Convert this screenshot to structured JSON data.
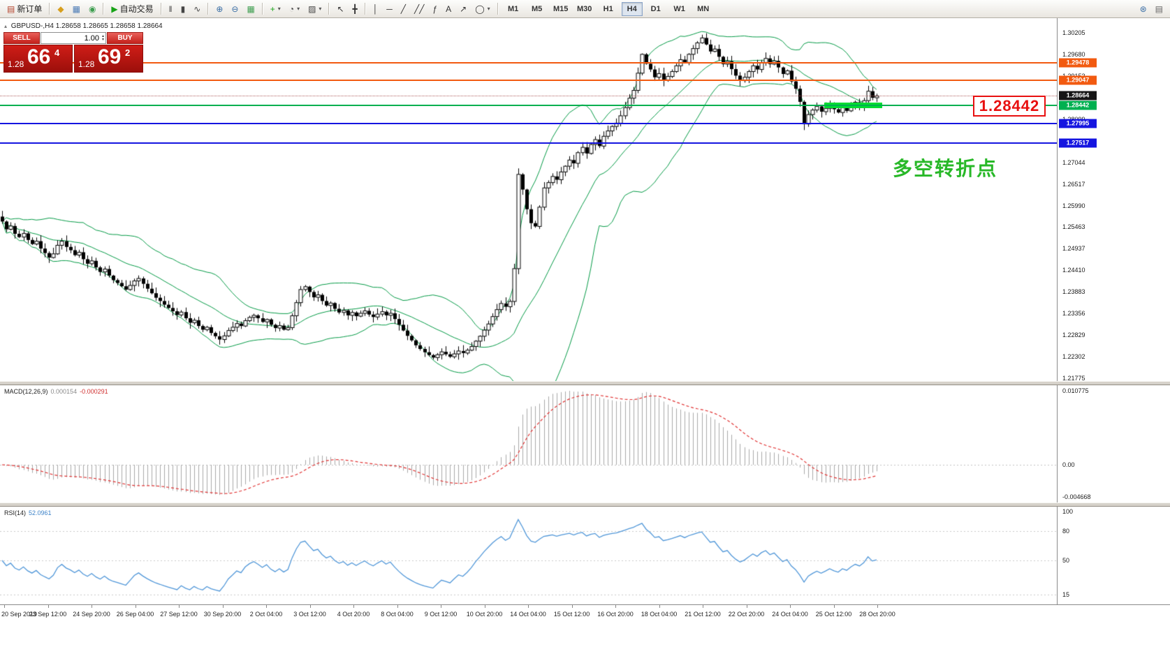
{
  "icons": {
    "collapse": "▴",
    "caret": "▾",
    "caret_up": "▴",
    "caret_down": "▾"
  },
  "toolbar": {
    "groups": [
      [
        {
          "name": "new-order-button",
          "glyph": "▤",
          "glyph_color": "#b3402a",
          "label": "新订单"
        }
      ],
      [
        {
          "name": "market-watch-button",
          "glyph": "◆",
          "glyph_color": "#d79f1e"
        },
        {
          "name": "data-window-button",
          "glyph": "▦",
          "glyph_color": "#4a7ab5"
        },
        {
          "name": "navigator-button",
          "glyph": "◉",
          "glyph_color": "#3d9e4f"
        }
      ],
      [
        {
          "name": "autotrade-button",
          "glyph": "▶",
          "glyph_color": "#17a317",
          "label": "自动交易"
        }
      ],
      [
        {
          "name": "bar-chart-button",
          "glyph": "‖",
          "glyph_color": "#444444"
        },
        {
          "name": "candlestick-chart-button",
          "glyph": "▮",
          "glyph_color": "#444444"
        },
        {
          "name": "line-chart-button",
          "glyph": "∿",
          "glyph_color": "#444444"
        }
      ],
      [
        {
          "name": "zoom-in-button",
          "glyph": "⊕",
          "glyph_color": "#3a6ea5"
        },
        {
          "name": "zoom-out-button",
          "glyph": "⊖",
          "glyph_color": "#3a6ea5"
        },
        {
          "name": "tile-windows-button",
          "glyph": "▦",
          "glyph_color": "#3d9e4f"
        }
      ],
      [
        {
          "name": "indicators-button",
          "glyph": "+",
          "glyph_color": "#17a317",
          "caret": true
        },
        {
          "name": "periods-button",
          "glyph": "◔",
          "glyph_color": "#444444",
          "caret": true
        },
        {
          "name": "templates-button",
          "glyph": "▨",
          "glyph_color": "#444444",
          "caret": true
        }
      ],
      [
        {
          "name": "cursor-button",
          "glyph": "↖",
          "glyph_color": "#333333"
        },
        {
          "name": "crosshair-button",
          "glyph": "╋",
          "glyph_color": "#333333"
        }
      ],
      [
        {
          "name": "vertical-line-button",
          "glyph": "│",
          "glyph_color": "#333333"
        },
        {
          "name": "horizontal-line-button",
          "glyph": "─",
          "glyph_color": "#333333"
        },
        {
          "name": "trendline-button",
          "glyph": "╱",
          "glyph_color": "#333333"
        },
        {
          "name": "channel-button",
          "glyph": "╱╱",
          "glyph_color": "#333333"
        },
        {
          "name": "fibonacci-button",
          "glyph": "ƒ",
          "glyph_color": "#333333"
        },
        {
          "name": "text-button",
          "glyph": "A",
          "glyph_color": "#333333"
        },
        {
          "name": "arrows-button",
          "glyph": "↗",
          "glyph_color": "#333333"
        },
        {
          "name": "shapes-button",
          "glyph": "◯",
          "glyph_color": "#333333",
          "caret": true
        }
      ]
    ],
    "timeframes": [
      {
        "label": "M1"
      },
      {
        "label": "M5"
      },
      {
        "label": "M15"
      },
      {
        "label": "M30"
      },
      {
        "label": "H1"
      },
      {
        "label": "H4",
        "active": true
      },
      {
        "label": "D1"
      },
      {
        "label": "W1"
      },
      {
        "label": "MN"
      }
    ],
    "right_icons": [
      {
        "name": "search-button",
        "glyph": "⊛",
        "glyph_color": "#3a6ea5"
      },
      {
        "name": "news-button",
        "glyph": "▤",
        "glyph_color": "#666666"
      }
    ]
  },
  "symbol_info": {
    "text": "GBPUSD-,H4  1.28658 1.28665 1.28658 1.28664"
  },
  "trade_panel": {
    "sell_label": "SELL",
    "buy_label": "BUY",
    "lot": "1.00",
    "sell_price": {
      "prefix": "1.28",
      "big": "66",
      "sup": "4"
    },
    "buy_price": {
      "prefix": "1.28",
      "big": "69",
      "sup": "2"
    }
  },
  "annotation": {
    "text": "多空转折点",
    "color": "#28b828"
  },
  "callout": {
    "text": "1.28442",
    "color": "#e81010"
  },
  "chart_data": {
    "type": "candlestick",
    "symbol": "GBPUSD-",
    "timeframe": "H4",
    "y_axis": {
      "min": 1.21775,
      "max": 1.30205,
      "ticks": [
        "1.30205",
        "1.29680",
        "1.29153",
        "1.28626",
        "1.28099",
        "1.27572",
        "1.27044",
        "1.26517",
        "1.25990",
        "1.25463",
        "1.24937",
        "1.24410",
        "1.23883",
        "1.23356",
        "1.22829",
        "1.22302",
        "1.21775"
      ]
    },
    "time_labels": [
      "20 Sep 2019",
      "23 Sep 12:00",
      "24 Sep 20:00",
      "26 Sep 04:00",
      "27 Sep 12:00",
      "30 Sep 20:00",
      "2 Oct 04:00",
      "3 Oct 12:00",
      "4 Oct 20:00",
      "8 Oct 04:00",
      "9 Oct 12:00",
      "10 Oct 20:00",
      "14 Oct 04:00",
      "15 Oct 12:00",
      "16 Oct 20:00",
      "18 Oct 04:00",
      "21 Oct 12:00",
      "22 Oct 20:00",
      "24 Oct 04:00",
      "25 Oct 12:00",
      "28 Oct 20:00"
    ],
    "closes": [
      1.256,
      1.2541,
      1.2549,
      1.253,
      1.2522,
      1.2531,
      1.2515,
      1.2505,
      1.2512,
      1.2494,
      1.2483,
      1.2472,
      1.2481,
      1.2502,
      1.2512,
      1.2498,
      1.249,
      1.2478,
      1.2485,
      1.2468,
      1.2457,
      1.2464,
      1.2448,
      1.2437,
      1.2444,
      1.2428,
      1.2417,
      1.241,
      1.2402,
      1.2394,
      1.2404,
      1.2415,
      1.2421,
      1.2408,
      1.2396,
      1.2385,
      1.2374,
      1.2366,
      1.2357,
      1.2349,
      1.2341,
      1.2332,
      1.2339,
      1.2324,
      1.2313,
      1.2319,
      1.2305,
      1.2296,
      1.2302,
      1.2288,
      1.228,
      1.2272,
      1.2281,
      1.2294,
      1.2302,
      1.2311,
      1.2305,
      1.2318,
      1.2326,
      1.2331,
      1.2324,
      1.2315,
      1.2321,
      1.2308,
      1.23,
      1.2306,
      1.2296,
      1.2301,
      1.233,
      1.2362,
      1.2394,
      1.2401,
      1.2388,
      1.2375,
      1.2381,
      1.2366,
      1.2355,
      1.2361,
      1.2347,
      1.2338,
      1.2343,
      1.2331,
      1.2338,
      1.2329,
      1.2336,
      1.2342,
      1.2333,
      1.2327,
      1.2334,
      1.234,
      1.2331,
      1.2336,
      1.2322,
      1.2308,
      1.2294,
      1.2281,
      1.227,
      1.2258,
      1.2249,
      1.2241,
      1.2234,
      1.2228,
      1.2235,
      1.2242,
      1.2236,
      1.223,
      1.2237,
      1.2244,
      1.2239,
      1.2246,
      1.2255,
      1.2268,
      1.228,
      1.2295,
      1.231,
      1.2328,
      1.2345,
      1.236,
      1.2352,
      1.2365,
      1.2445,
      1.2675,
      1.2638,
      1.259,
      1.2556,
      1.2548,
      1.2595,
      1.2642,
      1.2655,
      1.267,
      1.2662,
      1.2681,
      1.2695,
      1.271,
      1.2702,
      1.2728,
      1.2741,
      1.2726,
      1.2748,
      1.276,
      1.2744,
      1.2768,
      1.2781,
      1.2792,
      1.28,
      1.2818,
      1.2838,
      1.2861,
      1.288,
      1.2922,
      1.2968,
      1.2945,
      1.2931,
      1.2912,
      1.2921,
      1.2905,
      1.2914,
      1.2926,
      1.294,
      1.2955,
      1.2948,
      1.2968,
      1.2982,
      1.2996,
      1.3008,
      1.2992,
      1.2975,
      1.2981,
      1.2962,
      1.2944,
      1.2951,
      1.2932,
      1.2916,
      1.2904,
      1.2912,
      1.2926,
      1.294,
      1.2931,
      1.2948,
      1.2958,
      1.2944,
      1.2952,
      1.2936,
      1.292,
      1.2928,
      1.2902,
      1.2884,
      1.2852,
      1.2798,
      1.2821,
      1.2832,
      1.2841,
      1.2828,
      1.2836,
      1.2845,
      1.2834,
      1.2826,
      1.2838,
      1.283,
      1.2842,
      1.2851,
      1.2844,
      1.2855,
      1.2878,
      1.2862,
      1.28664
    ],
    "overlays": {
      "bollinger": {
        "period": 20,
        "deviation": 2,
        "color": "#009944"
      }
    },
    "levels": [
      {
        "name": "resistance-line-1",
        "price": 1.29478,
        "label": "1.29478",
        "color": "#f25a10"
      },
      {
        "name": "resistance-line-2",
        "price": 1.29047,
        "label": "1.29047",
        "color": "#f25a10"
      },
      {
        "name": "pivot-line",
        "price": 1.28442,
        "label": "1.28442",
        "color": "#00b050"
      },
      {
        "name": "support-line-1",
        "price": 1.27995,
        "label": "1.27995",
        "color": "#1515e0"
      },
      {
        "name": "support-line-2",
        "price": 1.27517,
        "label": "1.27517",
        "color": "#1515e0"
      }
    ],
    "highlight_zone": {
      "price": 1.28442,
      "start_index": 193,
      "end_index": 206,
      "color": "#00dc32"
    },
    "current_price": {
      "value": 1.28664,
      "label": "1.28664",
      "tag_bg": "#161616"
    },
    "indicators": [
      {
        "type": "macd",
        "label": "MACD(12,26,9)",
        "value": "0.000154",
        "signal_value": "-0.000291",
        "axis_ticks": [
          "0.010775",
          "0.00",
          "-0.004668"
        ],
        "histogram_color": "#a8a8a8",
        "signal_color": "#e03030"
      },
      {
        "type": "rsi",
        "label": "RSI(14)",
        "value": "52.0961",
        "axis_ticks": [
          100,
          80,
          50,
          15
        ],
        "line_color": "#4f96d8"
      }
    ]
  }
}
